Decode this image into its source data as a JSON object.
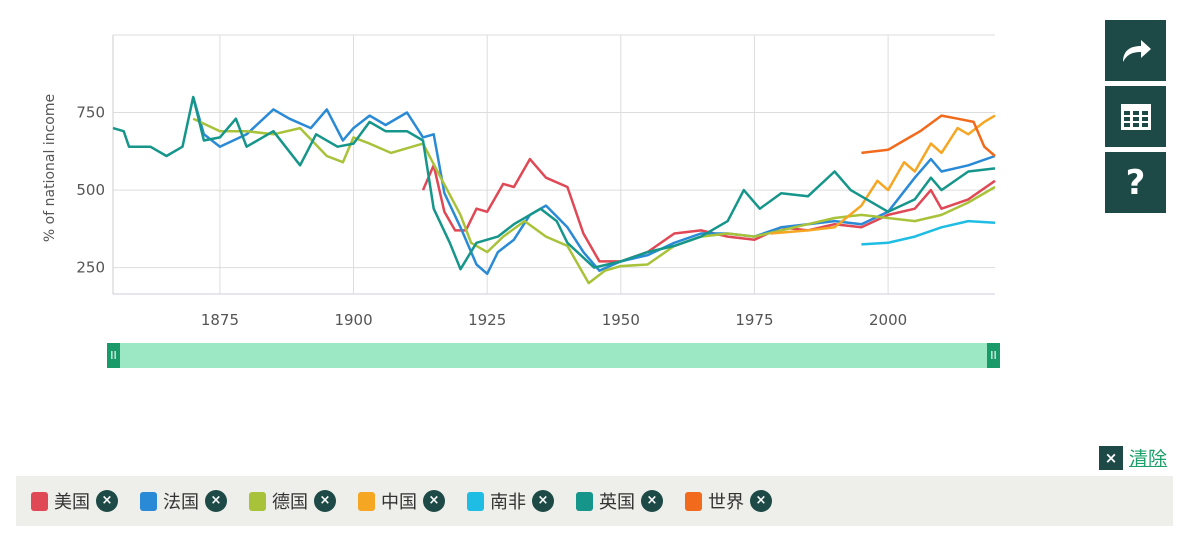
{
  "chart_data": {
    "type": "line",
    "xlabel": "",
    "ylabel": "% of national income",
    "xlim": [
      1855,
      2020
    ],
    "ylim": [
      165,
      1000
    ],
    "xticks": [
      1875,
      1900,
      1925,
      1950,
      1975,
      2000
    ],
    "yticks": [
      250,
      500,
      750
    ],
    "grid": true,
    "legend": "bottom",
    "series": [
      {
        "name": "美国",
        "color": "#e04855",
        "points": [
          [
            1913,
            500
          ],
          [
            1915,
            580
          ],
          [
            1917,
            430
          ],
          [
            1919,
            370
          ],
          [
            1921,
            370
          ],
          [
            1923,
            440
          ],
          [
            1925,
            430
          ],
          [
            1928,
            520
          ],
          [
            1930,
            510
          ],
          [
            1933,
            600
          ],
          [
            1936,
            540
          ],
          [
            1940,
            510
          ],
          [
            1943,
            360
          ],
          [
            1946,
            270
          ],
          [
            1950,
            270
          ],
          [
            1955,
            300
          ],
          [
            1960,
            360
          ],
          [
            1965,
            370
          ],
          [
            1970,
            350
          ],
          [
            1975,
            340
          ],
          [
            1980,
            380
          ],
          [
            1985,
            370
          ],
          [
            1990,
            390
          ],
          [
            1995,
            380
          ],
          [
            2000,
            420
          ],
          [
            2005,
            440
          ],
          [
            2008,
            500
          ],
          [
            2010,
            440
          ],
          [
            2015,
            470
          ],
          [
            2020,
            530
          ]
        ]
      },
      {
        "name": "法国",
        "color": "#2a8ad6",
        "points": [
          [
            1870,
            800
          ],
          [
            1872,
            680
          ],
          [
            1875,
            640
          ],
          [
            1880,
            680
          ],
          [
            1885,
            760
          ],
          [
            1888,
            730
          ],
          [
            1892,
            700
          ],
          [
            1895,
            760
          ],
          [
            1898,
            660
          ],
          [
            1900,
            700
          ],
          [
            1903,
            740
          ],
          [
            1906,
            710
          ],
          [
            1910,
            750
          ],
          [
            1913,
            670
          ],
          [
            1915,
            680
          ],
          [
            1917,
            490
          ],
          [
            1920,
            380
          ],
          [
            1923,
            260
          ],
          [
            1925,
            230
          ],
          [
            1927,
            300
          ],
          [
            1930,
            340
          ],
          [
            1933,
            420
          ],
          [
            1936,
            450
          ],
          [
            1940,
            380
          ],
          [
            1943,
            300
          ],
          [
            1946,
            240
          ],
          [
            1950,
            270
          ],
          [
            1955,
            290
          ],
          [
            1960,
            330
          ],
          [
            1965,
            360
          ],
          [
            1970,
            360
          ],
          [
            1975,
            350
          ],
          [
            1980,
            380
          ],
          [
            1985,
            390
          ],
          [
            1990,
            400
          ],
          [
            1995,
            390
          ],
          [
            2000,
            430
          ],
          [
            2005,
            540
          ],
          [
            2008,
            600
          ],
          [
            2010,
            560
          ],
          [
            2015,
            580
          ],
          [
            2020,
            610
          ]
        ]
      },
      {
        "name": "德国",
        "color": "#a8c23a",
        "points": [
          [
            1870,
            730
          ],
          [
            1875,
            690
          ],
          [
            1880,
            690
          ],
          [
            1885,
            680
          ],
          [
            1890,
            700
          ],
          [
            1895,
            610
          ],
          [
            1898,
            590
          ],
          [
            1900,
            670
          ],
          [
            1903,
            650
          ],
          [
            1907,
            620
          ],
          [
            1913,
            650
          ],
          [
            1916,
            550
          ],
          [
            1920,
            420
          ],
          [
            1922,
            330
          ],
          [
            1925,
            300
          ],
          [
            1928,
            350
          ],
          [
            1932,
            400
          ],
          [
            1936,
            350
          ],
          [
            1940,
            320
          ],
          [
            1944,
            200
          ],
          [
            1947,
            240
          ],
          [
            1950,
            255
          ],
          [
            1955,
            260
          ],
          [
            1960,
            320
          ],
          [
            1965,
            350
          ],
          [
            1970,
            360
          ],
          [
            1975,
            350
          ],
          [
            1980,
            370
          ],
          [
            1985,
            390
          ],
          [
            1990,
            410
          ],
          [
            1995,
            420
          ],
          [
            2000,
            410
          ],
          [
            2005,
            400
          ],
          [
            2010,
            420
          ],
          [
            2015,
            460
          ],
          [
            2020,
            510
          ]
        ]
      },
      {
        "name": "中国",
        "color": "#f5a623",
        "points": [
          [
            1978,
            360
          ],
          [
            1985,
            370
          ],
          [
            1990,
            380
          ],
          [
            1995,
            450
          ],
          [
            1998,
            530
          ],
          [
            2000,
            500
          ],
          [
            2003,
            590
          ],
          [
            2005,
            560
          ],
          [
            2008,
            650
          ],
          [
            2010,
            620
          ],
          [
            2013,
            700
          ],
          [
            2015,
            680
          ],
          [
            2018,
            720
          ],
          [
            2020,
            740
          ]
        ]
      },
      {
        "name": "南非",
        "color": "#1fbde4",
        "points": [
          [
            1995,
            325
          ],
          [
            2000,
            330
          ],
          [
            2005,
            350
          ],
          [
            2010,
            380
          ],
          [
            2015,
            400
          ],
          [
            2020,
            395
          ]
        ]
      },
      {
        "name": "英国",
        "color": "#16968a",
        "points": [
          [
            1855,
            700
          ],
          [
            1857,
            690
          ],
          [
            1858,
            640
          ],
          [
            1862,
            640
          ],
          [
            1865,
            610
          ],
          [
            1868,
            640
          ],
          [
            1870,
            800
          ],
          [
            1872,
            660
          ],
          [
            1875,
            670
          ],
          [
            1878,
            730
          ],
          [
            1880,
            640
          ],
          [
            1885,
            690
          ],
          [
            1890,
            580
          ],
          [
            1893,
            680
          ],
          [
            1897,
            640
          ],
          [
            1900,
            650
          ],
          [
            1903,
            720
          ],
          [
            1906,
            690
          ],
          [
            1910,
            690
          ],
          [
            1913,
            660
          ],
          [
            1915,
            440
          ],
          [
            1918,
            330
          ],
          [
            1920,
            245
          ],
          [
            1923,
            330
          ],
          [
            1927,
            350
          ],
          [
            1930,
            390
          ],
          [
            1935,
            440
          ],
          [
            1938,
            400
          ],
          [
            1940,
            330
          ],
          [
            1945,
            250
          ],
          [
            1950,
            270
          ],
          [
            1955,
            300
          ],
          [
            1960,
            320
          ],
          [
            1965,
            350
          ],
          [
            1970,
            400
          ],
          [
            1973,
            500
          ],
          [
            1976,
            440
          ],
          [
            1980,
            490
          ],
          [
            1985,
            480
          ],
          [
            1990,
            560
          ],
          [
            1993,
            500
          ],
          [
            1995,
            480
          ],
          [
            2000,
            430
          ],
          [
            2005,
            470
          ],
          [
            2008,
            540
          ],
          [
            2010,
            500
          ],
          [
            2015,
            560
          ],
          [
            2020,
            570
          ]
        ]
      },
      {
        "name": "世界",
        "color": "#f26a1b",
        "points": [
          [
            1995,
            620
          ],
          [
            2000,
            630
          ],
          [
            2003,
            660
          ],
          [
            2006,
            690
          ],
          [
            2010,
            740
          ],
          [
            2013,
            730
          ],
          [
            2016,
            720
          ],
          [
            2018,
            640
          ],
          [
            2020,
            610
          ]
        ]
      }
    ]
  },
  "controls": {
    "share_icon": "share-arrow",
    "table_icon": "table-grid",
    "help_label": "?",
    "clear_label": "清除",
    "clear_icon": "×",
    "remove_icon": "×",
    "handle_label": "II"
  }
}
